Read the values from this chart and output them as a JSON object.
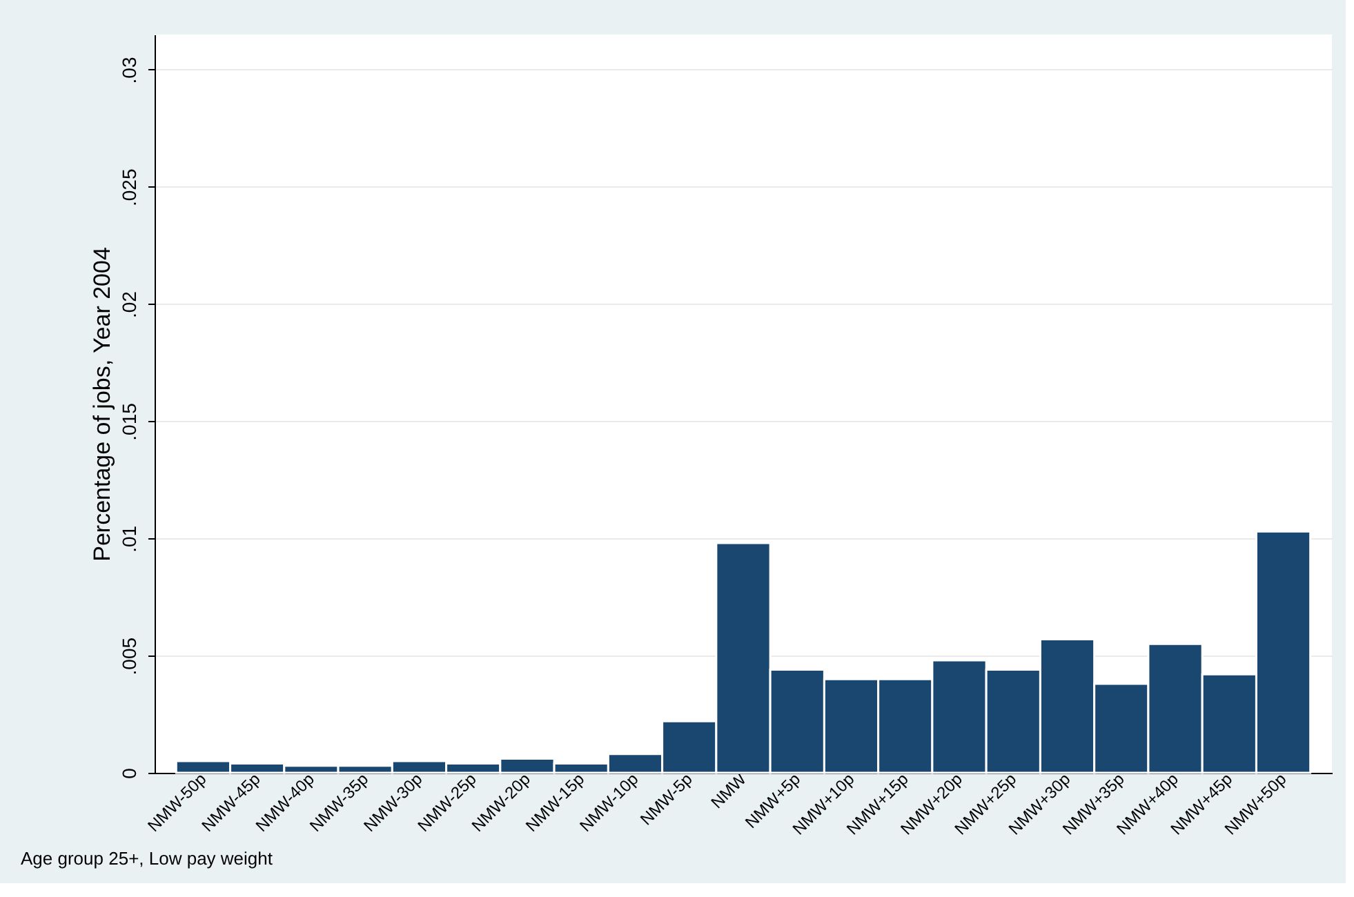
{
  "chart_data": {
    "type": "bar",
    "ylabel": "Percentage of jobs, Year 2004",
    "categories": [
      "NMW-50p",
      "NMW-45p",
      "NMW-40p",
      "NMW-35p",
      "NMW-30p",
      "NMW-25p",
      "NMW-20p",
      "NMW-15p",
      "NMW-10p",
      "NMW-5p",
      "NMW",
      "NMW+5p",
      "NMW+10p",
      "NMW+15p",
      "NMW+20p",
      "NMW+25p",
      "NMW+30p",
      "NMW+35p",
      "NMW+40p",
      "NMW+45p",
      "NMW+50p"
    ],
    "values": [
      0.0005,
      0.0004,
      0.0003,
      0.0003,
      0.0005,
      0.0004,
      0.0006,
      0.0004,
      0.0008,
      0.0022,
      0.0098,
      0.0044,
      0.004,
      0.004,
      0.0048,
      0.0044,
      0.0057,
      0.0038,
      0.0055,
      0.0042,
      0.0103
    ],
    "color": "#1a476f",
    "ylim": [
      0,
      0.0315
    ],
    "yticks": [
      0,
      {
        "value": 0.005,
        "label": ".005"
      },
      {
        "value": 0.01,
        "label": ".01"
      },
      {
        "value": 0.015,
        "label": ".015"
      },
      {
        "value": 0.02,
        "label": ".02"
      },
      {
        "value": 0.025,
        "label": ".025"
      },
      {
        "value": 0.03,
        "label": ".03"
      }
    ],
    "grid": "y",
    "annotations": [
      "Age group 25+, Low pay weight"
    ]
  }
}
